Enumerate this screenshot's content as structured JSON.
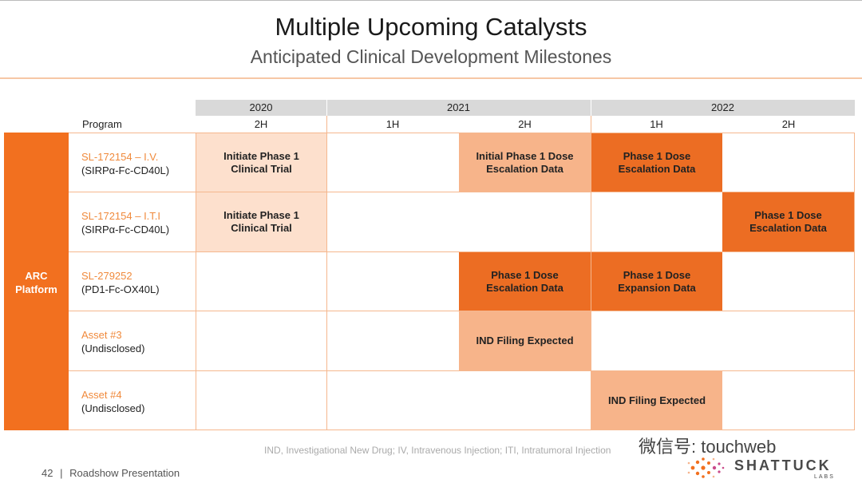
{
  "slide": {
    "title": "Multiple Upcoming Catalysts",
    "subtitle": "Anticipated Clinical Development Milestones"
  },
  "header": {
    "program_label": "Program",
    "years": [
      "2020",
      "2021",
      "2022"
    ],
    "halves": [
      "2H",
      "1H",
      "2H",
      "1H",
      "2H"
    ]
  },
  "platform": {
    "label_line1": "ARC",
    "label_line2": "Platform"
  },
  "programs": [
    {
      "name": "SL-172154 – I.V.",
      "target": "(SIRPα-Fc-CD40L)"
    },
    {
      "name": "SL-172154 – I.T.I",
      "target": "(SIRPα-Fc-CD40L)"
    },
    {
      "name": "SL-279252",
      "target": "(PD1-Fc-OX40L)"
    },
    {
      "name": "Asset #3",
      "target": "(Undisclosed)"
    },
    {
      "name": "Asset #4",
      "target": "(Undisclosed)"
    }
  ],
  "milestones": [
    {
      "line1": "Initiate Phase 1",
      "line2": "Clinical Trial"
    },
    {
      "line1": "Initial Phase 1 Dose",
      "line2": "Escalation Data"
    },
    {
      "line1": "Phase 1 Dose",
      "line2": "Escalation Data"
    },
    {
      "line1": "Initiate Phase 1",
      "line2": "Clinical Trial"
    },
    {
      "line1": "Phase 1 Dose",
      "line2": "Escalation Data"
    },
    {
      "line1": "Phase 1 Dose",
      "line2": "Escalation Data"
    },
    {
      "line1": "Phase 1 Dose",
      "line2": "Expansion Data"
    },
    {
      "line1": "IND Filing Expected",
      "line2": ""
    },
    {
      "line1": "IND Filing Expected",
      "line2": ""
    }
  ],
  "colors": {
    "accent": "#ec6d23",
    "light": "#fde0cd",
    "mid": "#f7b48a",
    "grid": "#f5b78e"
  },
  "footnote": "IND, Investigational New Drug; IV, Intravenous Injection; ITI, Intratumoral Injection",
  "footer": {
    "page_number": "42",
    "separator": "|",
    "text": "Roadshow Presentation"
  },
  "watermark": "微信号: touchweb",
  "logo": {
    "word": "SHATTUCK",
    "sub": "LABS",
    "icon": "dot-cluster-logo-icon"
  }
}
